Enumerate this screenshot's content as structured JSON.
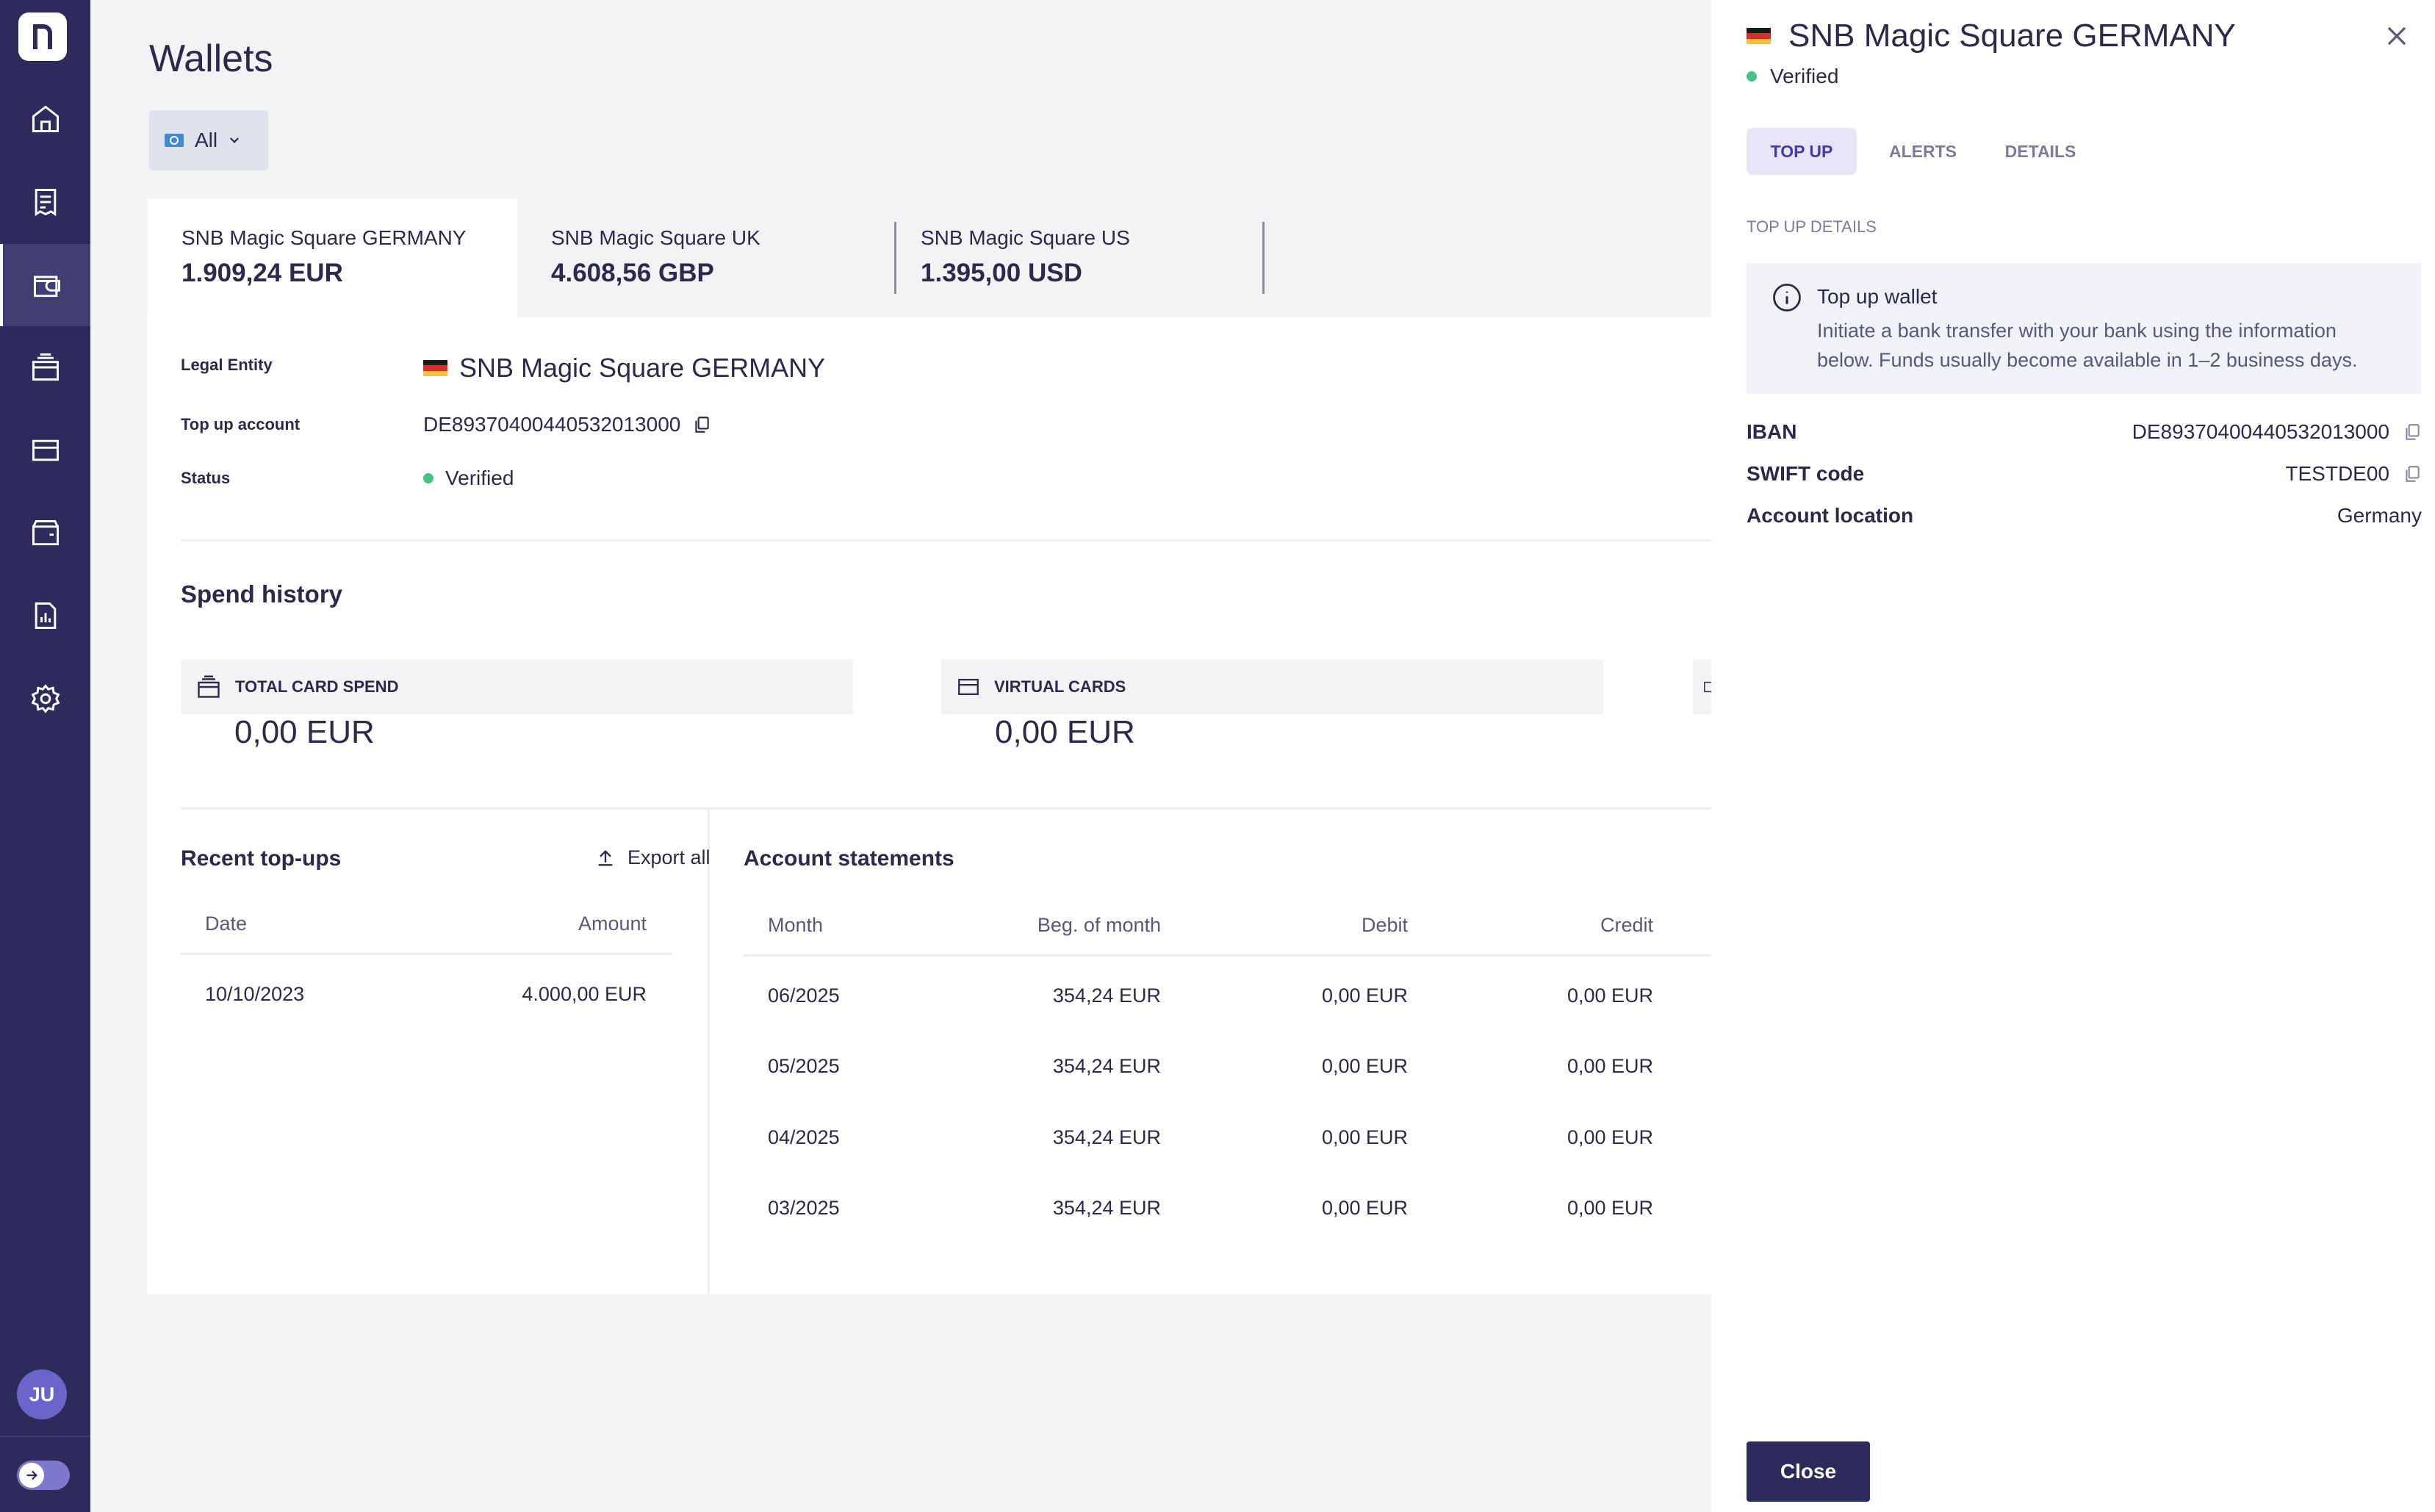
{
  "app": {
    "avatar_initials": "JU"
  },
  "sidebar": {
    "items": [
      {
        "icon": "home-icon"
      },
      {
        "icon": "receipt-icon"
      },
      {
        "icon": "wallet-icon"
      },
      {
        "icon": "cards-icon"
      },
      {
        "icon": "card-icon"
      },
      {
        "icon": "folder-wallet-icon"
      },
      {
        "icon": "report-icon"
      },
      {
        "icon": "gear-icon"
      }
    ]
  },
  "page": {
    "title": "Wallets",
    "filter_label": "All"
  },
  "wallet_tabs": [
    {
      "name": "SNB Magic Square GERMANY",
      "balance": "1.909,24 EUR"
    },
    {
      "name": "SNB Magic Square UK",
      "balance": "4.608,56 GBP"
    },
    {
      "name": "SNB Magic Square US",
      "balance": "1.395,00 USD"
    }
  ],
  "wallet_info": {
    "legal_entity_label": "Legal Entity",
    "legal_entity_value": "SNB Magic Square GERMANY",
    "topup_account_label": "Top up account",
    "topup_account_value": "DE89370400440532013000",
    "status_label": "Status",
    "status_value": "Verified"
  },
  "spend_history": {
    "title": "Spend history",
    "boxes": [
      {
        "label": "TOTAL CARD SPEND",
        "value": "0,00 EUR"
      },
      {
        "label": "VIRTUAL CARDS",
        "value": "0,00 EUR"
      }
    ]
  },
  "recent_topups": {
    "title": "Recent top-ups",
    "export_label": "Export all",
    "columns": [
      "Date",
      "Amount"
    ],
    "rows": [
      {
        "date": "10/10/2023",
        "amount": "4.000,00 EUR"
      }
    ]
  },
  "account_statements": {
    "title": "Account statements",
    "columns": [
      "Month",
      "Beg. of month",
      "Debit",
      "Credit"
    ],
    "rows": [
      {
        "month": "06/2025",
        "beg": "354,24 EUR",
        "debit": "0,00 EUR",
        "credit": "0,00 EUR"
      },
      {
        "month": "05/2025",
        "beg": "354,24 EUR",
        "debit": "0,00 EUR",
        "credit": "0,00 EUR"
      },
      {
        "month": "04/2025",
        "beg": "354,24 EUR",
        "debit": "0,00 EUR",
        "credit": "0,00 EUR"
      },
      {
        "month": "03/2025",
        "beg": "354,24 EUR",
        "debit": "0,00 EUR",
        "credit": "0,00 EUR"
      }
    ]
  },
  "panel": {
    "title": "SNB Magic Square GERMANY",
    "status": "Verified",
    "tabs": [
      "TOP UP",
      "ALERTS",
      "DETAILS"
    ],
    "subheading": "TOP UP DETAILS",
    "info_title": "Top up wallet",
    "info_text": "Initiate a bank transfer with your bank using the information below. Funds usually become available in 1–2 business days.",
    "iban_label": "IBAN",
    "iban_value": "DE89370400440532013000",
    "swift_label": "SWIFT code",
    "swift_value": "TESTDE00",
    "location_label": "Account location",
    "location_value": "Germany",
    "close_label": "Close"
  },
  "colors": {
    "sidebar": "#2d2b5c",
    "accent": "#3f3aa6",
    "verified": "#45c186"
  }
}
